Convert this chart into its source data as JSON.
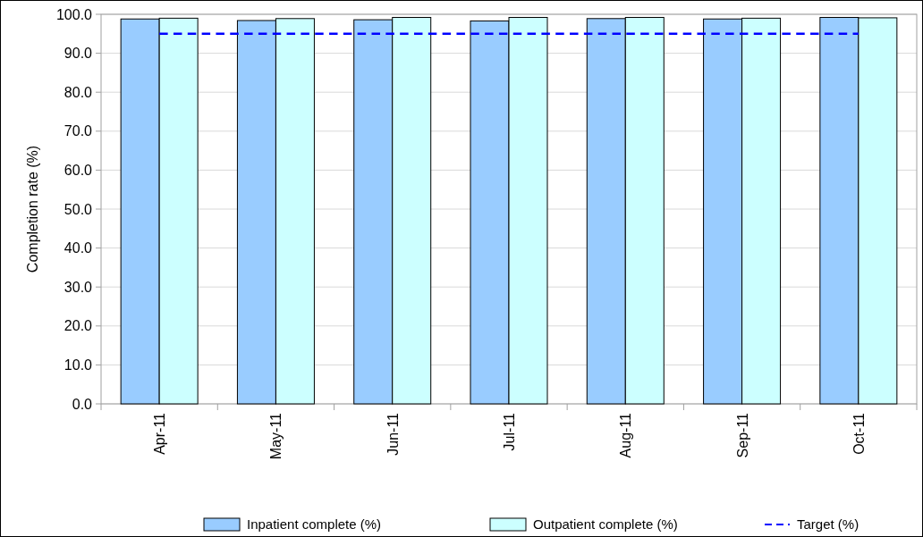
{
  "chart_data": {
    "type": "bar",
    "ylabel": "Completion rate (%)",
    "categories": [
      "Apr-11",
      "May-11",
      "Jun-11",
      "Jul-11",
      "Aug-11",
      "Sep-11",
      "Oct-11"
    ],
    "series": [
      {
        "name": "Inpatient complete (%)",
        "color": "#99ccff",
        "values": [
          98.8,
          98.4,
          98.6,
          98.3,
          98.9,
          98.8,
          99.2
        ]
      },
      {
        "name": "Outpatient complete (%)",
        "color": "#ccffff",
        "values": [
          99.0,
          98.9,
          99.2,
          99.2,
          99.2,
          99.0,
          99.1
        ]
      },
      {
        "name": "Target (%)",
        "type": "line",
        "color": "#0000ff",
        "line_style": "dashed",
        "marker": "none",
        "values": [
          95,
          95,
          95,
          95,
          95,
          95,
          95
        ]
      }
    ],
    "ylim": [
      0,
      100
    ],
    "yticks": [
      {
        "value": 0,
        "label": "0.0"
      },
      {
        "value": 10,
        "label": "10.0"
      },
      {
        "value": 20,
        "label": "20.0"
      },
      {
        "value": 30,
        "label": "30.0"
      },
      {
        "value": 40,
        "label": "40.0"
      },
      {
        "value": 50,
        "label": "50.0"
      },
      {
        "value": 60,
        "label": "60.0"
      },
      {
        "value": 70,
        "label": "70.0"
      },
      {
        "value": 80,
        "label": "80.0"
      },
      {
        "value": 90,
        "label": "90.0"
      },
      {
        "value": 100,
        "label": "100.0"
      }
    ],
    "grid": "y",
    "legend": "bottom"
  }
}
